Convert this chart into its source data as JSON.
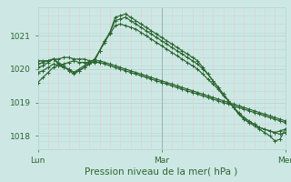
{
  "background_color": "#cde8e4",
  "plot_bg_color": "#cde8e4",
  "grid_color_light": "#b8d8d4",
  "grid_color_pink": "#e8c8c8",
  "line_color": "#2d6632",
  "xlabel": "Pression niveau de la mer( hPa )",
  "yticks": [
    1018,
    1019,
    1020,
    1021
  ],
  "ylim": [
    1017.6,
    1021.85
  ],
  "xlim": [
    0,
    96
  ],
  "xtick_labels": [
    "Lun",
    "Mar",
    "Mer"
  ],
  "xtick_positions": [
    0,
    48,
    96
  ],
  "series": [
    [
      1019.6,
      1019.75,
      1019.9,
      1020.05,
      1020.1,
      1020.15,
      1020.2,
      1020.25,
      1020.2,
      1020.2,
      1020.2,
      1020.2,
      1020.2,
      1020.15,
      1020.1,
      1020.05,
      1020.0,
      1019.95,
      1019.9,
      1019.85,
      1019.8,
      1019.75,
      1019.7,
      1019.65,
      1019.6,
      1019.55,
      1019.5,
      1019.45,
      1019.4,
      1019.35,
      1019.3,
      1019.25,
      1019.2,
      1019.15,
      1019.1,
      1019.05,
      1019.0,
      1018.95,
      1018.9,
      1018.85,
      1018.8,
      1018.75,
      1018.7,
      1018.65,
      1018.6,
      1018.55,
      1018.5,
      1018.45,
      1018.4
    ],
    [
      1020.25,
      1020.25,
      1020.25,
      1020.3,
      1020.3,
      1020.35,
      1020.35,
      1020.3,
      1020.3,
      1020.3,
      1020.25,
      1020.25,
      1020.25,
      1020.2,
      1020.15,
      1020.1,
      1020.05,
      1020.0,
      1019.95,
      1019.9,
      1019.85,
      1019.8,
      1019.75,
      1019.7,
      1019.65,
      1019.6,
      1019.55,
      1019.5,
      1019.45,
      1019.4,
      1019.35,
      1019.3,
      1019.25,
      1019.2,
      1019.15,
      1019.1,
      1019.05,
      1019.0,
      1018.95,
      1018.9,
      1018.85,
      1018.8,
      1018.75,
      1018.7,
      1018.65,
      1018.6,
      1018.55,
      1018.5,
      1018.45
    ],
    [
      1020.15,
      1020.2,
      1020.25,
      1020.3,
      1020.2,
      1020.1,
      1019.95,
      1019.85,
      1019.95,
      1020.05,
      1020.15,
      1020.25,
      1020.55,
      1020.85,
      1021.05,
      1021.3,
      1021.35,
      1021.3,
      1021.25,
      1021.2,
      1021.1,
      1021.0,
      1020.9,
      1020.8,
      1020.7,
      1020.6,
      1020.5,
      1020.4,
      1020.3,
      1020.2,
      1020.1,
      1020.0,
      1019.85,
      1019.7,
      1019.55,
      1019.4,
      1019.2,
      1019.05,
      1018.85,
      1018.7,
      1018.55,
      1018.45,
      1018.35,
      1018.25,
      1018.2,
      1018.15,
      1018.1,
      1018.05,
      1018.1
    ],
    [
      1019.9,
      1019.95,
      1020.05,
      1020.15,
      1020.1,
      1020.05,
      1020.0,
      1019.9,
      1020.0,
      1020.1,
      1020.2,
      1020.3,
      1020.55,
      1020.8,
      1021.1,
      1021.45,
      1021.5,
      1021.55,
      1021.45,
      1021.35,
      1021.25,
      1021.15,
      1021.05,
      1020.95,
      1020.85,
      1020.75,
      1020.65,
      1020.55,
      1020.45,
      1020.35,
      1020.25,
      1020.15,
      1020.0,
      1019.85,
      1019.65,
      1019.45,
      1019.25,
      1019.05,
      1018.85,
      1018.65,
      1018.5,
      1018.4,
      1018.35,
      1018.25,
      1018.2,
      1018.15,
      1018.1,
      1018.15,
      1018.2
    ],
    [
      1020.05,
      1020.1,
      1020.2,
      1020.3,
      1020.15,
      1020.05,
      1020.0,
      1019.9,
      1019.95,
      1020.05,
      1020.15,
      1020.25,
      1020.55,
      1020.85,
      1021.1,
      1021.55,
      1021.6,
      1021.65,
      1021.55,
      1021.45,
      1021.35,
      1021.25,
      1021.15,
      1021.05,
      1020.95,
      1020.85,
      1020.75,
      1020.65,
      1020.55,
      1020.45,
      1020.35,
      1020.25,
      1020.05,
      1019.85,
      1019.65,
      1019.45,
      1019.25,
      1019.05,
      1018.85,
      1018.65,
      1018.5,
      1018.4,
      1018.3,
      1018.2,
      1018.1,
      1018.0,
      1017.85,
      1017.9,
      1018.2
    ]
  ],
  "vline_color": "#888888",
  "vline_x": 48
}
